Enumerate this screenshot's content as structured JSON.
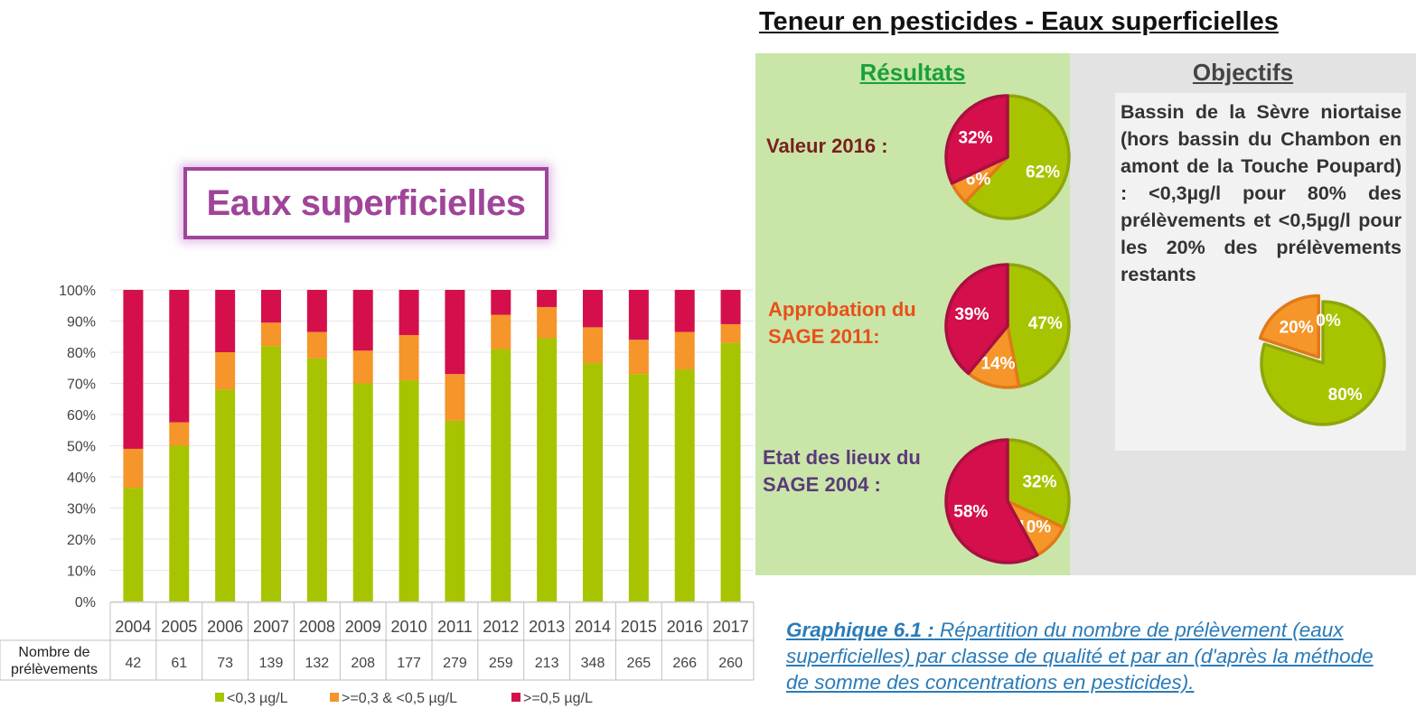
{
  "header": {
    "title": "Teneur en pesticides - Eaux superficielles"
  },
  "results": {
    "heading": "Résultats",
    "rows": [
      {
        "label": "Valeur 2016 :",
        "color": "#7a1f1f"
      },
      {
        "label": "Approbation du SAGE  2011:",
        "color": "#e8501a"
      },
      {
        "label": "Etat des lieux du SAGE 2004 :",
        "color": "#5b3a7a"
      }
    ]
  },
  "objectives": {
    "heading": "Objectifs",
    "text": "Bassin de la Sèvre niortaise (hors bassin du Chambon en amont de la Touche Poupard) : <0,3µg/l pour 80% des prélèvements et <0,5µg/l pour les 20% des prélèvements restants"
  },
  "colors": {
    "green": "#a8c400",
    "orange": "#f5952a",
    "red": "#d40f4b"
  },
  "chart_title": "Eaux superficielles",
  "caption": {
    "label": "Graphique 6.1 :",
    "text": " Répartition du nombre de prélèvement (eaux superficielles) par classe de qualité et par an (d'après la méthode de somme des concentrations en pesticides)."
  },
  "chart_data": [
    {
      "type": "bar",
      "stacked": true,
      "categories": [
        "2004",
        "2005",
        "2006",
        "2007",
        "2008",
        "2009",
        "2010",
        "2011",
        "2012",
        "2013",
        "2014",
        "2015",
        "2016",
        "2017"
      ],
      "series": [
        {
          "name": "<0,3 µg/L",
          "color": "#a8c400",
          "values": [
            36.5,
            50,
            68,
            82,
            78,
            70,
            71,
            58,
            81,
            84.5,
            76.5,
            73,
            74.5,
            83
          ]
        },
        {
          "name": ">=0,3 & <0,5 µg/L",
          "color": "#f5952a",
          "values": [
            12.5,
            7.5,
            12,
            7.5,
            8.5,
            10.5,
            14.5,
            15,
            11,
            10,
            11.5,
            11,
            12,
            6
          ]
        },
        {
          "name": ">=0,5 µg/L",
          "color": "#d40f4b",
          "values": [
            51,
            42.5,
            20,
            10.5,
            13.5,
            19.5,
            14.5,
            27,
            8,
            5.5,
            12,
            16,
            13.5,
            11
          ]
        }
      ],
      "ylim": [
        0,
        100
      ],
      "yticks": [
        "0%",
        "10%",
        "20%",
        "30%",
        "40%",
        "50%",
        "60%",
        "70%",
        "80%",
        "90%",
        "100%"
      ],
      "table": {
        "row_label": "Nombre de prélèvements",
        "values": [
          42,
          61,
          73,
          139,
          132,
          208,
          177,
          279,
          259,
          213,
          348,
          265,
          266,
          260
        ]
      },
      "legend_position": "bottom"
    },
    {
      "type": "pie",
      "slices": [
        {
          "class": "<0,3 µg/L",
          "value": 62,
          "label": "62%",
          "color": "#a8c400"
        },
        {
          "class": ">=0,3 & <0,5 µg/L",
          "value": 6,
          "label": "6%",
          "color": "#f5952a"
        },
        {
          "class": ">=0,5 µg/L",
          "value": 32,
          "label": "32%",
          "color": "#d40f4b"
        }
      ]
    },
    {
      "type": "pie",
      "slices": [
        {
          "class": "<0,3 µg/L",
          "value": 47,
          "label": "47%",
          "color": "#a8c400"
        },
        {
          "class": ">=0,3 & <0,5 µg/L",
          "value": 14,
          "label": "14%",
          "color": "#f5952a"
        },
        {
          "class": ">=0,5 µg/L",
          "value": 39,
          "label": "39%",
          "color": "#d40f4b"
        }
      ]
    },
    {
      "type": "pie",
      "slices": [
        {
          "class": "<0,3 µg/L",
          "value": 32,
          "label": "32%",
          "color": "#a8c400"
        },
        {
          "class": ">=0,3 & <0,5 µg/L",
          "value": 10,
          "label": "10%",
          "color": "#f5952a"
        },
        {
          "class": ">=0,5 µg/L",
          "value": 58,
          "label": "58%",
          "color": "#d40f4b"
        }
      ]
    },
    {
      "type": "pie",
      "exploded_slice": ">=0,3 & <0,5 µg/L",
      "slices": [
        {
          "class": "<0,3 µg/L",
          "value": 80,
          "label": "80%",
          "color": "#a8c400"
        },
        {
          "class": ">=0,3 & <0,5 µg/L",
          "value": 20,
          "label": "20%",
          "color": "#f5952a"
        },
        {
          "class": ">=0,5 µg/L",
          "value": 0,
          "label": "0%",
          "color": "#d40f4b"
        }
      ]
    }
  ]
}
